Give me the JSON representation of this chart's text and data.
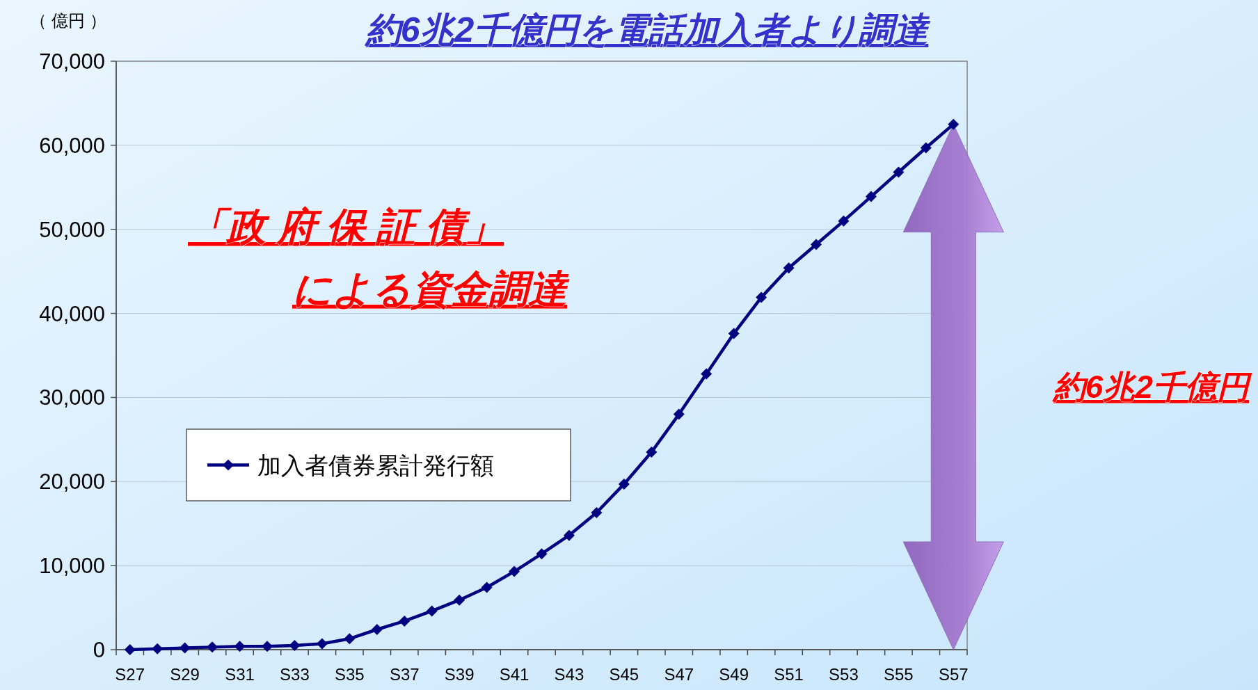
{
  "chart_data": {
    "type": "line",
    "title": "約6兆2千億円を電話加入者より調達",
    "ylabel": "（ 億円 ）",
    "categories": [
      "S27",
      null,
      "S29",
      null,
      "S31",
      null,
      "S33",
      null,
      "S35",
      null,
      "S37",
      null,
      "S39",
      null,
      "S41",
      null,
      "S43",
      null,
      "S45",
      null,
      "S47",
      null,
      "S49",
      null,
      "S51",
      null,
      "S53",
      null,
      "S55",
      null,
      "S57"
    ],
    "series": [
      {
        "name": "加入者債券累計発行額",
        "color": "#000080",
        "values": [
          0,
          100,
          200,
          300,
          400,
          400,
          500,
          700,
          1300,
          2400,
          3400,
          4600,
          5900,
          7400,
          9300,
          11400,
          13600,
          16300,
          19700,
          23500,
          28000,
          32800,
          37600,
          41900,
          45400,
          48200,
          51000,
          53900,
          56800,
          59700,
          62500
        ]
      }
    ],
    "ylim": [
      0,
      70000
    ],
    "yticks": [
      {
        "value": 0,
        "label": "0"
      },
      {
        "value": 10000,
        "label": "10,000"
      },
      {
        "value": 20000,
        "label": "20,000"
      },
      {
        "value": 30000,
        "label": "30,000"
      },
      {
        "value": 40000,
        "label": "40,000"
      },
      {
        "value": 50000,
        "label": "50,000"
      },
      {
        "value": 60000,
        "label": "60,000"
      },
      {
        "value": 70000,
        "label": "70,000"
      }
    ],
    "grid": "y",
    "legend": "left",
    "marker": "diamond",
    "line_style": "solid",
    "annotations": [
      "「政 府 保 証 債」",
      "による資金調達",
      "約6兆2千億円"
    ]
  }
}
